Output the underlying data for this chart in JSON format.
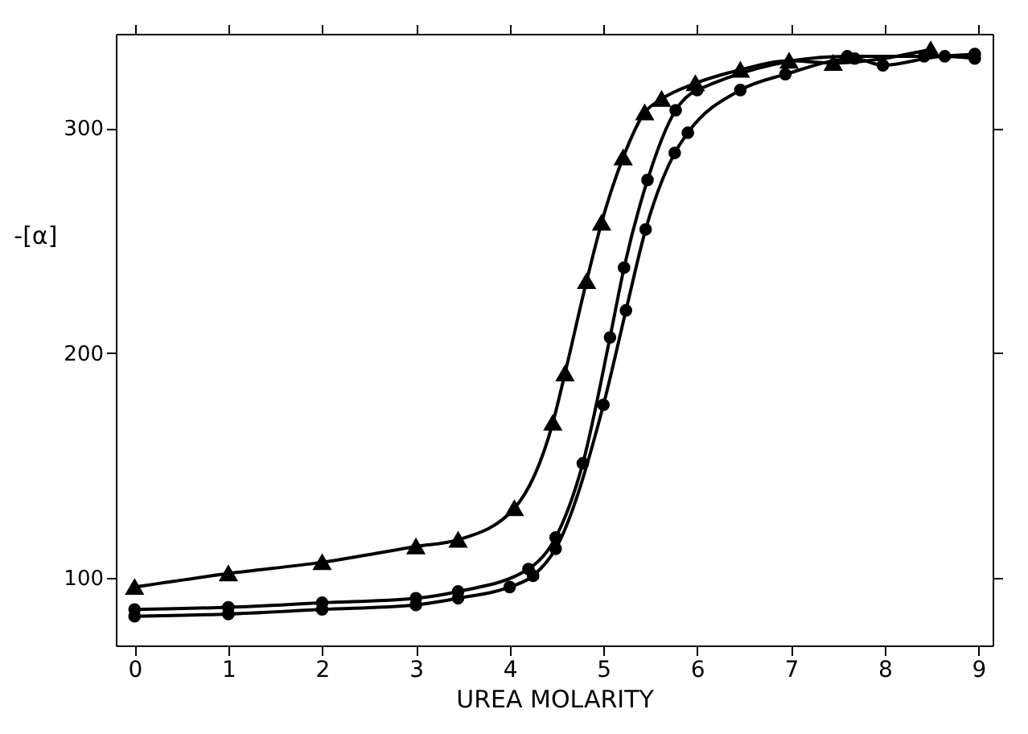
{
  "chart_data": {
    "type": "line",
    "xlabel": "UREA MOLARITY",
    "ylabel": "-[α]",
    "xlim": [
      -0.2,
      9.15
    ],
    "xticks": [
      0,
      1,
      2,
      3,
      4,
      5,
      6,
      7,
      8,
      9
    ],
    "ylim": [
      70,
      342
    ],
    "yticks": [
      100,
      200,
      300
    ],
    "grid": false,
    "line_style": "solid",
    "series": [
      {
        "color": "#000000",
        "marker": "triangle",
        "x": [
          0,
          1,
          2,
          3,
          3.45,
          4.05,
          4.46,
          4.59,
          4.82,
          4.98,
          5.21,
          5.44,
          5.62,
          5.98,
          6.46,
          6.98,
          7.45,
          8.49
        ],
        "values": [
          96,
          102,
          107,
          114,
          117,
          131,
          169,
          191,
          232,
          258,
          287,
          307,
          313,
          320,
          326,
          330,
          329,
          335
        ]
      },
      {
        "color": "#000000",
        "marker": "circle",
        "x": [
          0,
          1,
          2,
          3,
          3.45,
          4.2,
          4.49,
          4.78,
          5.07,
          5.22,
          5.47,
          5.77,
          6.0,
          7.6,
          8.42,
          8.96
        ],
        "values": [
          86,
          87,
          89,
          91,
          94,
          104,
          118,
          151,
          207,
          238,
          277,
          308,
          317,
          332,
          332,
          333
        ]
      },
      {
        "color": "#000000",
        "marker": "circle",
        "x": [
          0,
          1,
          2,
          3,
          3.45,
          4.0,
          4.25,
          4.49,
          5.0,
          5.24,
          5.45,
          5.76,
          5.9,
          6.46,
          6.94,
          7.68,
          7.98,
          8.64,
          8.96
        ],
        "values": [
          83,
          84,
          86,
          88,
          91,
          96,
          101,
          113,
          177,
          219,
          255,
          289,
          298,
          317,
          324,
          331,
          328,
          332,
          331
        ]
      }
    ]
  }
}
